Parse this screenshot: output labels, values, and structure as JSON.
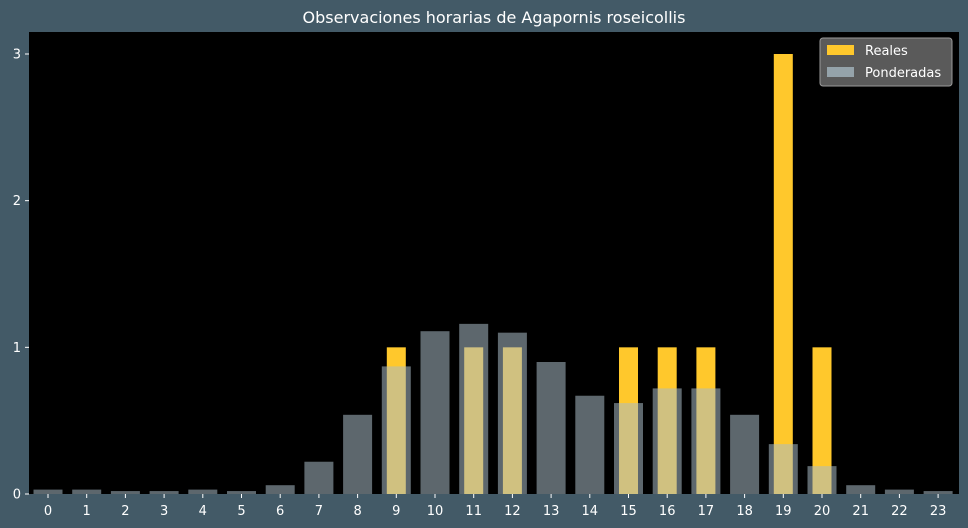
{
  "chart_data": {
    "type": "bar",
    "title": "Observaciones horarias de Agapornis roseicollis",
    "xlabel": "",
    "ylabel": "",
    "categories": [
      "0",
      "1",
      "2",
      "3",
      "4",
      "5",
      "6",
      "7",
      "8",
      "9",
      "10",
      "11",
      "12",
      "13",
      "14",
      "15",
      "16",
      "17",
      "18",
      "19",
      "20",
      "21",
      "22",
      "23"
    ],
    "ylim": [
      0,
      3.15
    ],
    "yticks": [
      0,
      1,
      2,
      3
    ],
    "grid": false,
    "legend_position": "top-right",
    "series": [
      {
        "name": "Reales",
        "color": "#ffc82c",
        "values": [
          0,
          0,
          0,
          0,
          0,
          0,
          0,
          0,
          0,
          1,
          0,
          1,
          1,
          0,
          0,
          1,
          1,
          1,
          0,
          3,
          1,
          0,
          0,
          0
        ]
      },
      {
        "name": "Ponderadas",
        "color": "#a9bcc6",
        "opacity": 0.55,
        "values": [
          0.03,
          0.03,
          0.02,
          0.02,
          0.03,
          0.02,
          0.06,
          0.22,
          0.54,
          0.87,
          1.11,
          1.16,
          1.1,
          0.9,
          0.67,
          0.62,
          0.72,
          0.72,
          0.54,
          0.34,
          0.19,
          0.06,
          0.03,
          0.02
        ]
      }
    ],
    "colors": {
      "background": "#435a67",
      "plot_area": "#000000",
      "text": "#ffffff"
    }
  }
}
